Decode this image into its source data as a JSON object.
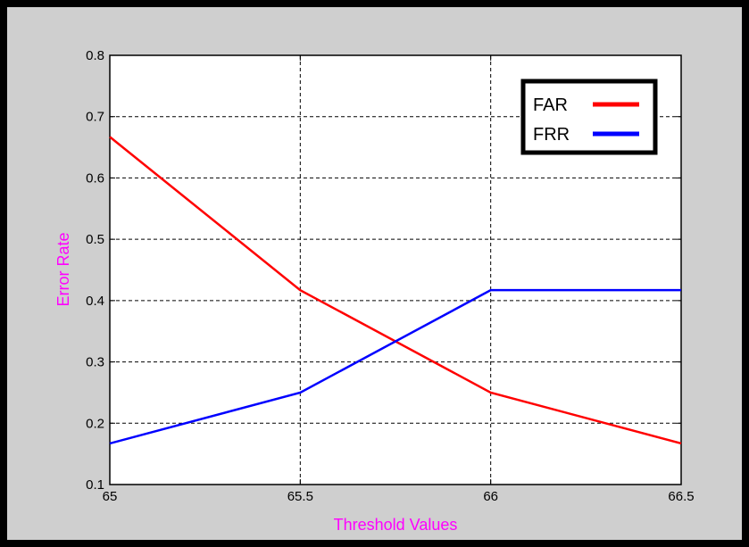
{
  "chart_data": {
    "type": "line",
    "title": "",
    "xlabel": "Threshold Values",
    "ylabel": "Error Rate",
    "xlim": [
      65,
      66.5
    ],
    "ylim": [
      0.1,
      0.8
    ],
    "x_ticks": [
      "65",
      "65.5",
      "66",
      "66.5"
    ],
    "y_ticks": [
      "0.1",
      "0.2",
      "0.3",
      "0.4",
      "0.5",
      "0.6",
      "0.7",
      "0.8"
    ],
    "grid": true,
    "legend_position": "top-right",
    "x": [
      65,
      65.5,
      66,
      66.5
    ],
    "series": [
      {
        "name": "FAR",
        "color": "#ff0000",
        "values": [
          0.667,
          0.417,
          0.25,
          0.167
        ]
      },
      {
        "name": "FRR",
        "color": "#0000ff",
        "values": [
          0.167,
          0.25,
          0.417,
          0.417
        ]
      }
    ]
  }
}
